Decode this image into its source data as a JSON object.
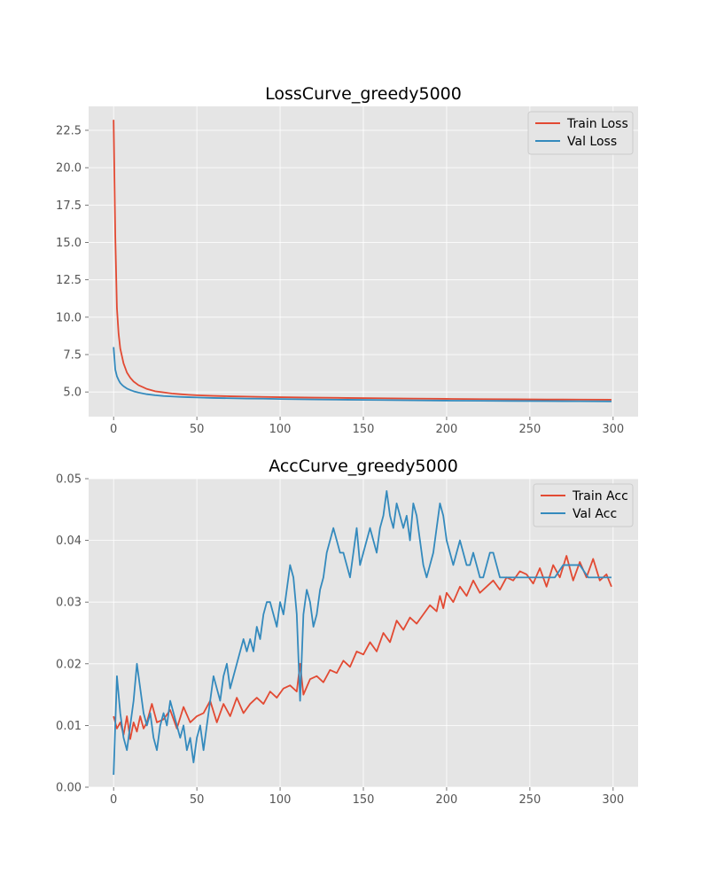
{
  "chart_data": [
    {
      "type": "line",
      "title": "LossCurve_greedy5000",
      "xlabel": "",
      "ylabel": "",
      "xlim": [
        -15,
        315
      ],
      "ylim": [
        3.35,
        24.1
      ],
      "xticks": [
        0,
        50,
        100,
        150,
        200,
        250,
        300
      ],
      "yticks": [
        5.0,
        7.5,
        10.0,
        12.5,
        15.0,
        17.5,
        20.0,
        22.5
      ],
      "ytick_labels": [
        "5.0",
        "7.5",
        "10.0",
        "12.5",
        "15.0",
        "17.5",
        "20.0",
        "22.5"
      ],
      "grid": true,
      "legend_position": "top-right",
      "series": [
        {
          "name": "Train Loss",
          "color": "#E24A33",
          "x": [
            0,
            1,
            2,
            3,
            4,
            5,
            6,
            8,
            10,
            12,
            15,
            18,
            20,
            25,
            30,
            35,
            40,
            45,
            50,
            60,
            70,
            80,
            90,
            100,
            120,
            140,
            160,
            180,
            200,
            220,
            240,
            260,
            280,
            299
          ],
          "y": [
            23.2,
            15.5,
            10.6,
            8.9,
            7.9,
            7.4,
            6.9,
            6.3,
            5.95,
            5.7,
            5.45,
            5.3,
            5.2,
            5.05,
            4.97,
            4.9,
            4.85,
            4.81,
            4.78,
            4.74,
            4.71,
            4.69,
            4.67,
            4.65,
            4.62,
            4.6,
            4.58,
            4.56,
            4.54,
            4.52,
            4.51,
            4.5,
            4.49,
            4.48
          ]
        },
        {
          "name": "Val Loss",
          "color": "#348ABD",
          "x": [
            0,
            1,
            2,
            3,
            4,
            5,
            6,
            8,
            10,
            12,
            15,
            18,
            20,
            25,
            30,
            35,
            40,
            45,
            50,
            60,
            70,
            80,
            90,
            100,
            120,
            140,
            160,
            180,
            200,
            220,
            240,
            260,
            280,
            299
          ],
          "y": [
            8.0,
            6.5,
            6.05,
            5.8,
            5.6,
            5.48,
            5.38,
            5.23,
            5.13,
            5.05,
            4.96,
            4.89,
            4.85,
            4.78,
            4.73,
            4.7,
            4.67,
            4.65,
            4.63,
            4.6,
            4.58,
            4.56,
            4.55,
            4.53,
            4.5,
            4.48,
            4.46,
            4.44,
            4.42,
            4.41,
            4.4,
            4.39,
            4.38,
            4.37
          ]
        }
      ]
    },
    {
      "type": "line",
      "title": "AccCurve_greedy5000",
      "xlabel": "",
      "ylabel": "",
      "xlim": [
        -15,
        315
      ],
      "ylim": [
        0,
        0.05
      ],
      "xticks": [
        0,
        50,
        100,
        150,
        200,
        250,
        300
      ],
      "yticks": [
        0.0,
        0.01,
        0.02,
        0.03,
        0.04,
        0.05
      ],
      "ytick_labels": [
        "0.00",
        "0.01",
        "0.02",
        "0.03",
        "0.04",
        "0.05"
      ],
      "grid": true,
      "legend_position": "top-right",
      "series": [
        {
          "name": "Train Acc",
          "color": "#E24A33",
          "x": [
            0,
            2,
            4,
            6,
            8,
            10,
            12,
            14,
            16,
            18,
            20,
            23,
            26,
            30,
            34,
            38,
            42,
            46,
            50,
            54,
            58,
            62,
            66,
            70,
            74,
            78,
            82,
            86,
            90,
            94,
            98,
            102,
            106,
            110,
            112,
            114,
            118,
            122,
            126,
            130,
            134,
            138,
            142,
            146,
            150,
            154,
            158,
            162,
            166,
            170,
            174,
            178,
            182,
            186,
            190,
            194,
            196,
            198,
            200,
            204,
            208,
            212,
            216,
            220,
            224,
            228,
            232,
            236,
            240,
            244,
            248,
            252,
            256,
            260,
            264,
            268,
            272,
            276,
            280,
            284,
            288,
            292,
            296,
            299
          ],
          "y": [
            0.0115,
            0.0095,
            0.0105,
            0.0085,
            0.0115,
            0.0078,
            0.0105,
            0.009,
            0.0115,
            0.0095,
            0.0105,
            0.0135,
            0.0105,
            0.011,
            0.0125,
            0.0095,
            0.013,
            0.0105,
            0.0115,
            0.012,
            0.014,
            0.0105,
            0.0135,
            0.0115,
            0.0145,
            0.012,
            0.0135,
            0.0145,
            0.0135,
            0.0155,
            0.0145,
            0.016,
            0.0165,
            0.0155,
            0.02,
            0.015,
            0.0175,
            0.018,
            0.017,
            0.019,
            0.0185,
            0.0205,
            0.0195,
            0.022,
            0.0215,
            0.0235,
            0.022,
            0.025,
            0.0235,
            0.027,
            0.0255,
            0.0275,
            0.0265,
            0.028,
            0.0295,
            0.0285,
            0.031,
            0.029,
            0.0315,
            0.03,
            0.0325,
            0.031,
            0.0335,
            0.0315,
            0.0325,
            0.0335,
            0.032,
            0.034,
            0.0335,
            0.035,
            0.0345,
            0.033,
            0.0355,
            0.0325,
            0.036,
            0.034,
            0.0375,
            0.0335,
            0.0365,
            0.034,
            0.037,
            0.0335,
            0.0345,
            0.0325
          ]
        },
        {
          "name": "Val Acc",
          "color": "#348ABD",
          "x": [
            0,
            2,
            4,
            6,
            8,
            10,
            12,
            14,
            16,
            18,
            20,
            22,
            24,
            26,
            28,
            30,
            32,
            34,
            36,
            38,
            40,
            42,
            44,
            46,
            48,
            50,
            52,
            54,
            56,
            58,
            60,
            62,
            64,
            66,
            68,
            70,
            72,
            74,
            76,
            78,
            80,
            82,
            84,
            86,
            88,
            90,
            92,
            94,
            96,
            98,
            100,
            102,
            104,
            106,
            108,
            110,
            112,
            114,
            116,
            118,
            120,
            122,
            124,
            126,
            128,
            130,
            132,
            134,
            136,
            138,
            140,
            142,
            144,
            146,
            148,
            150,
            152,
            154,
            156,
            158,
            160,
            162,
            164,
            166,
            168,
            170,
            172,
            174,
            176,
            178,
            180,
            182,
            184,
            186,
            188,
            190,
            192,
            194,
            196,
            198,
            200,
            202,
            204,
            206,
            208,
            210,
            212,
            214,
            216,
            218,
            220,
            222,
            224,
            226,
            228,
            230,
            232,
            234,
            236,
            238,
            240,
            242,
            244,
            246,
            248,
            250,
            255,
            260,
            265,
            270,
            275,
            280,
            285,
            290,
            295,
            299
          ],
          "y": [
            0.002,
            0.018,
            0.012,
            0.008,
            0.006,
            0.01,
            0.014,
            0.02,
            0.016,
            0.012,
            0.01,
            0.012,
            0.008,
            0.006,
            0.01,
            0.012,
            0.01,
            0.014,
            0.012,
            0.01,
            0.008,
            0.01,
            0.006,
            0.008,
            0.004,
            0.008,
            0.01,
            0.006,
            0.01,
            0.014,
            0.018,
            0.016,
            0.014,
            0.018,
            0.02,
            0.016,
            0.018,
            0.02,
            0.022,
            0.024,
            0.022,
            0.024,
            0.022,
            0.026,
            0.024,
            0.028,
            0.03,
            0.03,
            0.028,
            0.026,
            0.03,
            0.028,
            0.032,
            0.036,
            0.034,
            0.028,
            0.014,
            0.028,
            0.032,
            0.03,
            0.026,
            0.028,
            0.032,
            0.034,
            0.038,
            0.04,
            0.042,
            0.04,
            0.038,
            0.038,
            0.036,
            0.034,
            0.038,
            0.042,
            0.036,
            0.038,
            0.04,
            0.042,
            0.04,
            0.038,
            0.042,
            0.044,
            0.048,
            0.044,
            0.042,
            0.046,
            0.044,
            0.042,
            0.044,
            0.04,
            0.046,
            0.044,
            0.04,
            0.036,
            0.034,
            0.036,
            0.038,
            0.042,
            0.046,
            0.044,
            0.04,
            0.038,
            0.036,
            0.038,
            0.04,
            0.038,
            0.036,
            0.036,
            0.038,
            0.036,
            0.034,
            0.034,
            0.036,
            0.038,
            0.038,
            0.036,
            0.034,
            0.034,
            0.034,
            0.034,
            0.034,
            0.034,
            0.034,
            0.034,
            0.034,
            0.034,
            0.034,
            0.034,
            0.034,
            0.036,
            0.036,
            0.036,
            0.034,
            0.034,
            0.034,
            0.034
          ]
        }
      ]
    }
  ]
}
